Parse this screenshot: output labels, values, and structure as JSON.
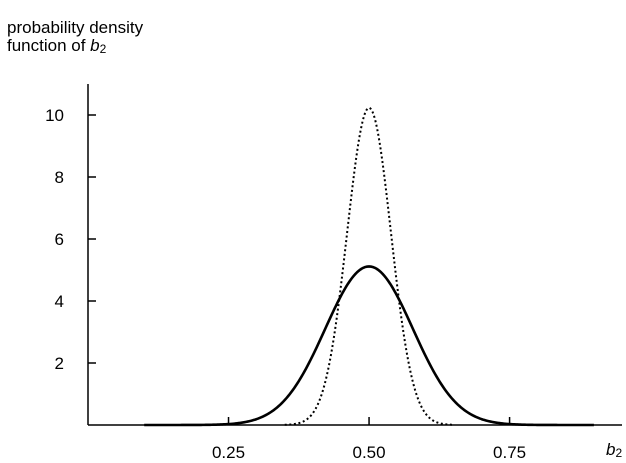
{
  "chart_data": {
    "type": "line",
    "ylabel_line1": "probability density",
    "ylabel_line2_prefix": "function of ",
    "ylabel_var": "b",
    "ylabel_sub": "2",
    "xlabel_var": "b",
    "xlabel_sub": "2",
    "xlim": [
      0.0,
      0.95
    ],
    "ylim": [
      0,
      11
    ],
    "xticks": [
      0.25,
      0.5,
      0.75
    ],
    "xtick_labels": [
      "0.25",
      "0.50",
      "0.75"
    ],
    "yticks": [
      2,
      4,
      6,
      8,
      10
    ],
    "ytick_labels": [
      "2",
      "4",
      "6",
      "8",
      "10"
    ],
    "grid": false,
    "series": [
      {
        "style": "solid",
        "color": "#000000",
        "mean": 0.5,
        "sd": 0.078,
        "x": [
          0.1,
          0.2,
          0.25,
          0.3,
          0.35,
          0.4,
          0.45,
          0.5,
          0.55,
          0.6,
          0.65,
          0.7,
          0.75,
          0.8,
          0.9
        ],
        "values": [
          0.01,
          0.03,
          0.13,
          0.51,
          1.61,
          2.23,
          4.31,
          5.1,
          4.31,
          2.23,
          1.61,
          0.51,
          0.13,
          0.03,
          0.01
        ]
      },
      {
        "style": "dotted",
        "color": "#000000",
        "mean": 0.5,
        "sd": 0.039,
        "x": [
          0.35,
          0.4,
          0.45,
          0.5,
          0.55,
          0.6,
          0.65
        ],
        "values": [
          0.06,
          0.38,
          4.4,
          10.2,
          4.4,
          0.38,
          0.06
        ]
      }
    ]
  }
}
